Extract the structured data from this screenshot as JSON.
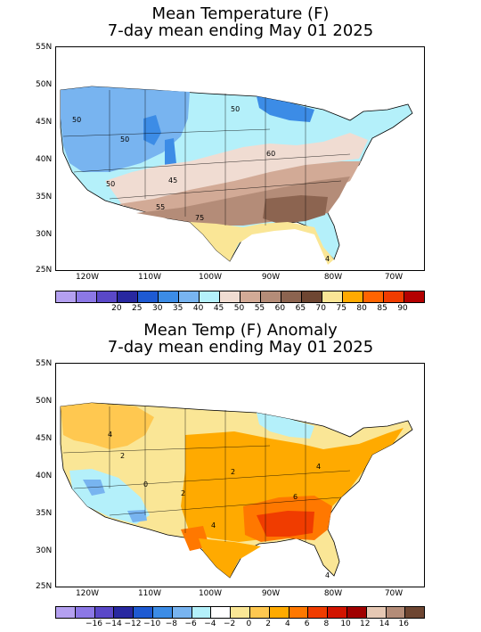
{
  "top_map": {
    "title_line1": "Mean Temperature (F)",
    "title_line2": "7-day mean ending May 01 2025",
    "lat_labels": [
      "55N",
      "50N",
      "45N",
      "40N",
      "35N",
      "30N",
      "25N"
    ],
    "lon_labels": [
      "120W",
      "110W",
      "100W",
      "90W",
      "80W",
      "70W"
    ],
    "contour_labels": [
      "50",
      "50",
      "50",
      "60",
      "45",
      "50",
      "55",
      "75",
      "4"
    ],
    "colorbar": {
      "colors": [
        "#b4a0f0",
        "#8c78e6",
        "#5a48c8",
        "#2828a0",
        "#1e5ad2",
        "#3c8ce6",
        "#78b4f0",
        "#b4f0fa",
        "#f0dcd2",
        "#d2aa96",
        "#b48c78",
        "#8c6450",
        "#6e4632",
        "#fae696",
        "#ffaa00",
        "#ff6400",
        "#f03c00",
        "#b40000"
      ],
      "labels": [
        "20",
        "25",
        "30",
        "35",
        "40",
        "45",
        "50",
        "55",
        "60",
        "65",
        "70",
        "75",
        "80",
        "85",
        "90"
      ]
    }
  },
  "bottom_map": {
    "title_line1": "Mean Temp (F) Anomaly",
    "title_line2": "7-day mean ending May 01 2025",
    "lat_labels": [
      "55N",
      "50N",
      "45N",
      "40N",
      "35N",
      "30N",
      "25N"
    ],
    "lon_labels": [
      "120W",
      "110W",
      "100W",
      "90W",
      "80W",
      "70W"
    ],
    "contour_labels": [
      "4",
      "2",
      "0",
      "2",
      "2",
      "4",
      "4",
      "6",
      "4"
    ],
    "colorbar": {
      "colors": [
        "#b4a0f0",
        "#8c78e6",
        "#5a48c8",
        "#2828a0",
        "#1e5ad2",
        "#3c8ce6",
        "#78b4f0",
        "#b4f0fa",
        "#ffffff",
        "#fae696",
        "#ffc850",
        "#ffaa00",
        "#ff7800",
        "#f03c00",
        "#d21400",
        "#a00000",
        "#e6c8b4",
        "#b48c78",
        "#6e4632"
      ],
      "labels": [
        "−16",
        "−14",
        "−12",
        "−10",
        "−8",
        "−6",
        "−4",
        "−2",
        "0",
        "2",
        "4",
        "6",
        "8",
        "10",
        "12",
        "14",
        "16"
      ]
    }
  }
}
